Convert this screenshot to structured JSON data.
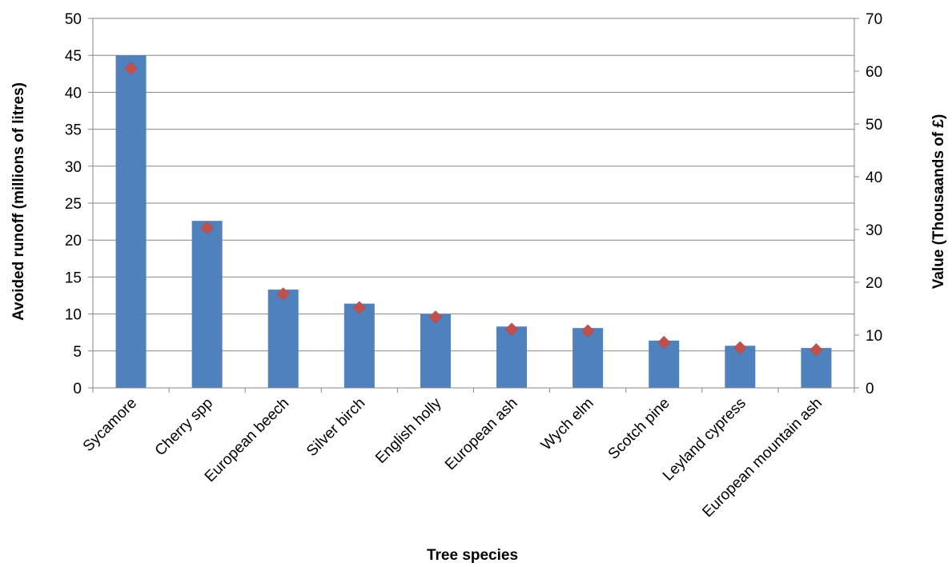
{
  "chart_data": {
    "type": "bar",
    "xlabel": "Tree species",
    "ylabel": "Avoided runoff (millions of litres)",
    "y2label": "Value (Thousaands of £)",
    "categories": [
      "Sycamore",
      "Cherry spp",
      "European beech",
      "Silver birch",
      "English holly",
      "European ash",
      "Wych elm",
      "Scotch pine",
      "Leyland cypress",
      "European mountain ash"
    ],
    "series": [
      {
        "type": "bar",
        "axis": "left",
        "color": "#4f81bd",
        "values": [
          45.0,
          22.6,
          13.3,
          11.4,
          10.0,
          8.3,
          8.1,
          6.4,
          5.7,
          5.4
        ]
      },
      {
        "type": "scatter",
        "marker": "diamond",
        "axis": "right",
        "color": "#c0504d",
        "values": [
          60.5,
          30.3,
          17.8,
          15.2,
          13.4,
          11.1,
          10.8,
          8.6,
          7.6,
          7.2
        ]
      }
    ],
    "ylim": [
      0,
      50
    ],
    "yticks": [
      "0",
      "5",
      "10",
      "15",
      "20",
      "25",
      "30",
      "35",
      "40",
      "45",
      "50"
    ],
    "y2lim": [
      0,
      70
    ],
    "y2ticks": [
      "0",
      "10",
      "20",
      "30",
      "40",
      "50",
      "60",
      "70"
    ],
    "grid": true,
    "legend": "none"
  }
}
